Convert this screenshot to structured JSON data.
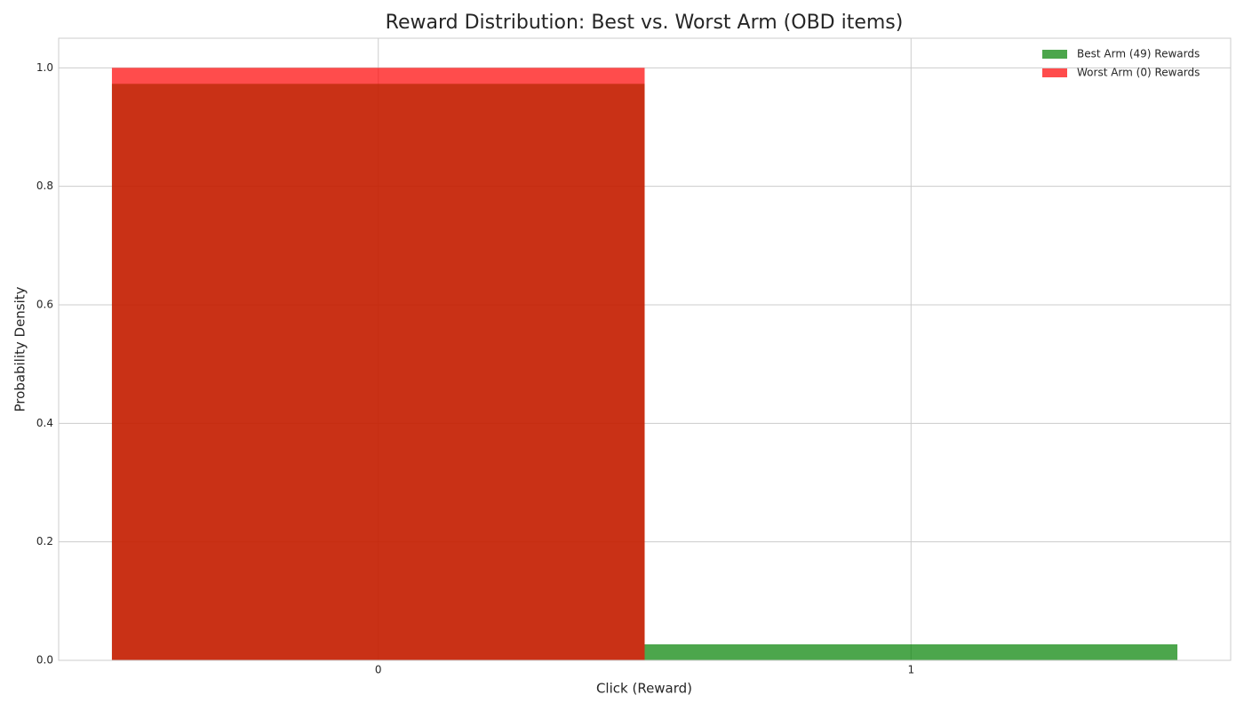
{
  "chart_data": {
    "type": "histogram",
    "title": "Reward Distribution: Best vs. Worst Arm (OBD items)",
    "xlabel": "Click (Reward)",
    "ylabel": "Probability Density",
    "series": [
      {
        "name": "Best Arm (49) Rewards",
        "color": "green",
        "bins": [
          -0.5,
          0.5,
          1.5
        ],
        "values": [
          0.973,
          0.027
        ]
      },
      {
        "name": "Worst Arm (0) Rewards",
        "color": "red",
        "bins": [
          -0.5,
          0.5,
          1.5
        ],
        "values": [
          1.0,
          0.0
        ]
      }
    ],
    "opacity": 0.7,
    "xlim": [
      -0.6,
      1.6
    ],
    "xticks": [
      0,
      1
    ],
    "ylim": [
      0,
      1.05
    ],
    "yticks": [
      {
        "value": 0,
        "label": "0.0"
      },
      {
        "value": 0.2,
        "label": "0.2"
      },
      {
        "value": 0.4,
        "label": "0.4"
      },
      {
        "value": 0.6,
        "label": "0.6"
      },
      {
        "value": 0.8,
        "label": "0.8"
      },
      {
        "value": 1,
        "label": "1.0"
      }
    ],
    "grid": true,
    "legend": "upper right"
  }
}
